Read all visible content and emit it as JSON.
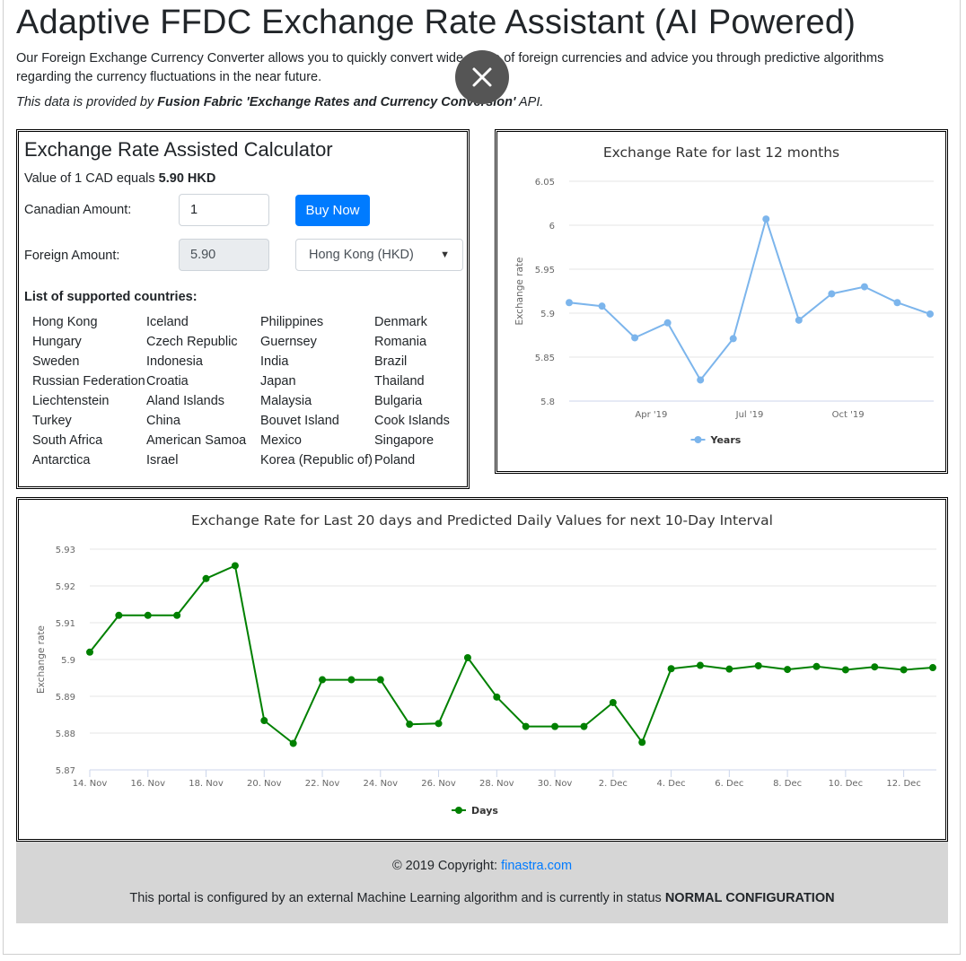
{
  "page": {
    "title": "Adaptive FFDC Exchange Rate Assistant (AI Powered)",
    "intro": "Our Foreign Exchange Currency Converter allows you to quickly convert wide range of foreign currencies and advice you through predictive algorithms regarding the currency fluctuations in the near future.",
    "source_prefix": "This data is provided by ",
    "source_bold": "Fusion Fabric 'Exchange Rates and Currency Conversion'",
    "source_suffix": " API."
  },
  "calculator": {
    "title": "Exchange Rate Assisted Calculator",
    "value_prefix": "Value of 1 CAD equals ",
    "value_bold": "5.90 HKD",
    "canadian_label": "Canadian Amount:",
    "canadian_value": "1",
    "buy_label": "Buy Now",
    "foreign_label": "Foreign Amount:",
    "foreign_value": "5.90",
    "currency_selected": "Hong Kong (HKD)",
    "countries_title": "List of supported countries:",
    "countries": [
      "Hong Kong",
      "Iceland",
      "Philippines",
      "Denmark",
      "Hungary",
      "Czech Republic",
      "Guernsey",
      "Romania",
      "Sweden",
      "Indonesia",
      "India",
      "Brazil",
      "Russian Federation",
      "Croatia",
      "Japan",
      "Thailand",
      "Liechtenstein",
      "Aland Islands",
      "Malaysia",
      "Bulgaria",
      "Turkey",
      "China",
      "Bouvet Island",
      "Cook Islands",
      "South Africa",
      "American Samoa",
      "Mexico",
      "Singapore",
      "Antarctica",
      "Israel",
      "Korea (Republic of)",
      "Poland"
    ]
  },
  "footer": {
    "copyright_prefix": "© 2019 Copyright: ",
    "copyright_link": "finastra.com",
    "status_prefix": "This portal is configured by an external Machine Learning algorithm and is currently in status ",
    "status_bold": "NORMAL CONFIGURATION"
  },
  "chart_data": [
    {
      "type": "line",
      "title": "Exchange Rate for last 12 months",
      "xlabel": "",
      "ylabel": "Exchange rate",
      "color": "#7cb5ec",
      "ylim": [
        5.8,
        6.05
      ],
      "yticks": [
        5.8,
        5.85,
        5.9,
        5.95,
        6,
        6.05
      ],
      "ytick_labels": [
        "5.8",
        "5.85",
        "5.9",
        "5.95",
        "6",
        "6.05"
      ],
      "x": [
        0,
        1,
        2,
        3,
        4,
        5,
        6,
        7,
        8,
        9,
        10,
        11
      ],
      "xlim": [
        0,
        11
      ],
      "xticks": [
        2.5,
        5.5,
        8.5
      ],
      "xtick_labels": [
        "Apr '19",
        "Jul '19",
        "Oct '19"
      ],
      "values": [
        5.912,
        5.908,
        5.872,
        5.889,
        5.824,
        5.871,
        6.007,
        5.892,
        5.922,
        5.93,
        5.912,
        5.899
      ],
      "legend": "Years",
      "grid": true
    },
    {
      "type": "line",
      "title": "Exchange Rate for Last 20 days and Predicted Daily Values for next 10-Day Interval",
      "xlabel": "",
      "ylabel": "Exchange rate",
      "color": "#008000",
      "ylim": [
        5.87,
        5.93
      ],
      "yticks": [
        5.87,
        5.88,
        5.89,
        5.9,
        5.91,
        5.92,
        5.93
      ],
      "ytick_labels": [
        "5.87",
        "5.88",
        "5.89",
        "5.9",
        "5.91",
        "5.92",
        "5.93"
      ],
      "x": [
        0,
        1,
        2,
        3,
        4,
        5,
        6,
        7,
        8,
        9,
        10,
        11,
        12,
        13,
        14,
        15,
        16,
        17,
        18,
        19,
        20,
        21,
        22,
        23,
        24,
        25,
        26,
        27,
        28,
        29
      ],
      "xlim": [
        0,
        29
      ],
      "xticks": [
        0,
        2,
        4,
        6,
        8,
        10,
        12,
        14,
        16,
        18,
        20,
        22,
        24,
        26,
        28
      ],
      "xtick_labels": [
        "14. Nov",
        "16. Nov",
        "18. Nov",
        "20. Nov",
        "22. Nov",
        "24. Nov",
        "26. Nov",
        "28. Nov",
        "30. Nov",
        "2. Dec",
        "4. Dec",
        "6. Dec",
        "8. Dec",
        "10. Dec",
        "12. Dec"
      ],
      "values": [
        5.902,
        5.912,
        5.912,
        5.912,
        5.922,
        5.9255,
        5.8834,
        5.8772,
        5.8945,
        5.8945,
        5.8945,
        5.8824,
        5.8826,
        5.9005,
        5.8898,
        5.8818,
        5.8818,
        5.8818,
        5.8883,
        5.8775,
        5.8975,
        5.8984,
        5.8974,
        5.8983,
        5.8973,
        5.8981,
        5.8972,
        5.898,
        5.8972,
        5.8978
      ],
      "legend": "Days",
      "grid": true
    }
  ]
}
